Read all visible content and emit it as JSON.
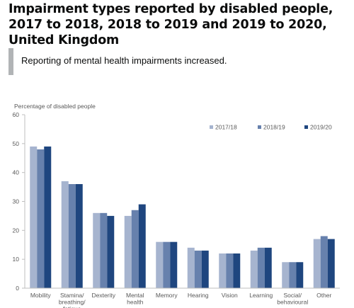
{
  "header": {
    "title": "Impairment types reported by disabled people, 2017 to 2018, 2018 to 2019 and 2019 to 2020, United Kingdom"
  },
  "callout": {
    "text": "Reporting of mental health impairments increased."
  },
  "chart_data": {
    "type": "bar",
    "title": "",
    "ylabel": "Percentage of disabled people",
    "xlabel": "",
    "ylim": [
      0,
      60
    ],
    "yticks": [
      0,
      10,
      20,
      30,
      40,
      50,
      60
    ],
    "grid": false,
    "legend_position": "top-right",
    "categories": [
      [
        "Mobility"
      ],
      [
        "Stamina/",
        "breathing/",
        "fatigue"
      ],
      [
        "Dexterity"
      ],
      [
        "Mental",
        "health"
      ],
      [
        "Memory"
      ],
      [
        "Hearing"
      ],
      [
        "Vision"
      ],
      [
        "Learning"
      ],
      [
        "Social/",
        "behavioural"
      ],
      [
        "Other"
      ]
    ],
    "series": [
      {
        "name": "2017/18",
        "color": "#a6b4cf",
        "values": [
          49,
          37,
          26,
          25,
          16,
          14,
          12,
          13,
          9,
          17
        ]
      },
      {
        "name": "2018/19",
        "color": "#6781ad",
        "values": [
          48,
          36,
          26,
          27,
          16,
          13,
          12,
          14,
          9,
          18
        ]
      },
      {
        "name": "2019/20",
        "color": "#1f467f",
        "values": [
          49,
          36,
          25,
          29,
          16,
          13,
          12,
          14,
          9,
          17
        ]
      }
    ]
  }
}
